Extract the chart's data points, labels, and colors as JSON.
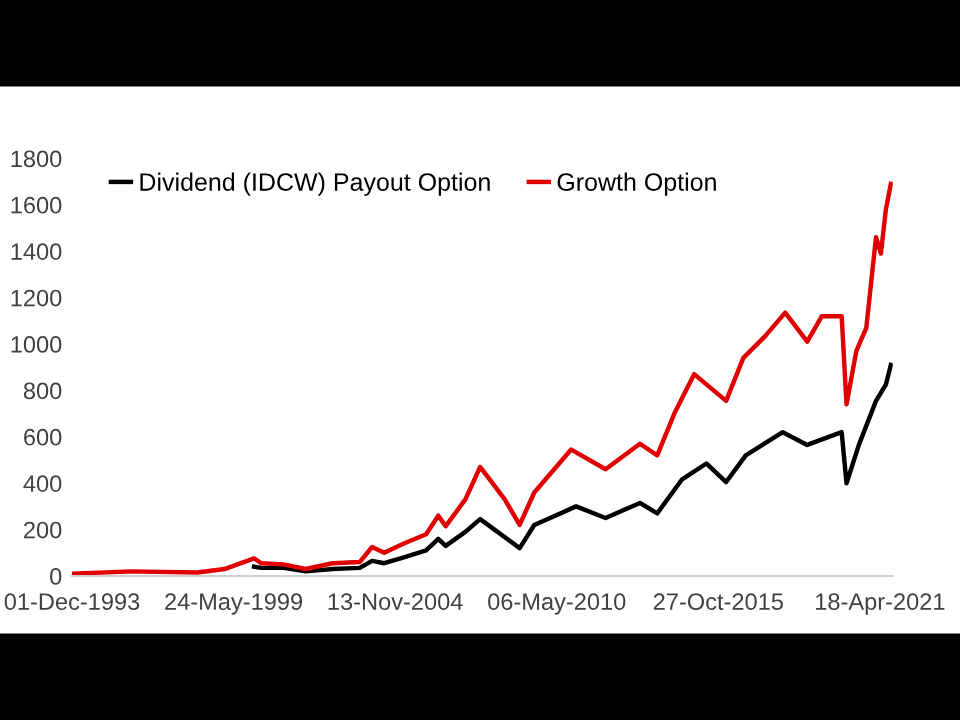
{
  "chart_data": {
    "type": "line",
    "xlim": [
      "1993-12-01",
      "2021-09-25"
    ],
    "xticks": [
      {
        "value": "1993-12-01",
        "label": "01-Dec-1993"
      },
      {
        "value": "1999-05-24",
        "label": "24-May-1999"
      },
      {
        "value": "2004-11-13",
        "label": "13-Nov-2004"
      },
      {
        "value": "2010-05-06",
        "label": "06-May-2010"
      },
      {
        "value": "2015-10-27",
        "label": "27-Oct-2015"
      },
      {
        "value": "2021-04-18",
        "label": "18-Apr-2021"
      }
    ],
    "ylim": [
      0,
      1800
    ],
    "yticks": [
      0,
      200,
      400,
      600,
      800,
      1000,
      1200,
      1400,
      1600,
      1800
    ],
    "grid": false,
    "legend": "top left",
    "marker": "none",
    "line_style": "solid",
    "series": [
      {
        "name": "Dividend (IDCW) Payout Option",
        "color": "#000000",
        "x": [
          "2000-02",
          "2000-05",
          "2001-02",
          "2001-11",
          "2002-10",
          "2003-09",
          "2004-02",
          "2004-07",
          "2005-03",
          "2005-12",
          "2006-05",
          "2006-08",
          "2007-04",
          "2007-10",
          "2009-02",
          "2009-08",
          "2011-01",
          "2012-01",
          "2013-03",
          "2013-10",
          "2014-08",
          "2015-06",
          "2016-02",
          "2016-10",
          "2018-01",
          "2018-11",
          "2020-01",
          "2020-03",
          "2020-08",
          "2021-03",
          "2021-07",
          "2021-09"
        ],
        "values": [
          40,
          35,
          35,
          20,
          30,
          35,
          65,
          55,
          80,
          110,
          160,
          130,
          190,
          245,
          120,
          220,
          300,
          250,
          315,
          270,
          415,
          485,
          405,
          520,
          620,
          565,
          620,
          400,
          565,
          755,
          825,
          910
        ]
      },
      {
        "name": "Growth Option",
        "color": "#e00000",
        "x": [
          "1993-12",
          "1995-12",
          "1998-03",
          "1999-02",
          "2000-02",
          "2000-05",
          "2001-02",
          "2001-11",
          "2002-10",
          "2003-09",
          "2004-02",
          "2004-07",
          "2005-03",
          "2005-12",
          "2006-05",
          "2006-08",
          "2007-04",
          "2007-10",
          "2008-08",
          "2009-02",
          "2009-08",
          "2010-11",
          "2012-01",
          "2013-03",
          "2013-10",
          "2014-05",
          "2015-01",
          "2016-02",
          "2016-09",
          "2017-06",
          "2018-02",
          "2018-11",
          "2019-05",
          "2020-01",
          "2020-03",
          "2020-07",
          "2020-11",
          "2021-03",
          "2021-05",
          "2021-07",
          "2021-09"
        ],
        "values": [
          10,
          20,
          15,
          30,
          76,
          55,
          50,
          30,
          55,
          60,
          125,
          100,
          140,
          180,
          260,
          215,
          330,
          470,
          330,
          220,
          360,
          545,
          460,
          570,
          520,
          700,
          870,
          755,
          940,
          1035,
          1135,
          1010,
          1120,
          1120,
          740,
          970,
          1070,
          1460,
          1390,
          1580,
          1690
        ]
      }
    ]
  }
}
